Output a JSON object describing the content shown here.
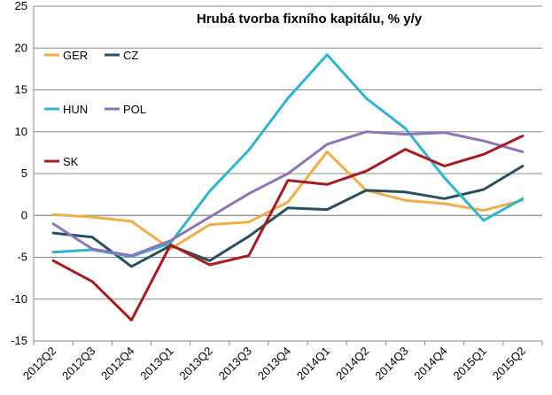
{
  "chart_data": {
    "type": "line",
    "title": "Hrubá tvorba fixního kapitálu, % y/y",
    "xlabel": "",
    "ylabel": "",
    "ylim": [
      -15,
      25
    ],
    "yticks": [
      -15,
      -10,
      -5,
      0,
      5,
      10,
      15,
      20,
      25
    ],
    "grid": true,
    "categories": [
      "2012Q2",
      "2012Q3",
      "2012Q4",
      "2013Q1",
      "2013Q2",
      "2013Q3",
      "2013Q4",
      "2014Q1",
      "2014Q2",
      "2014Q3",
      "2014Q4",
      "2015Q1",
      "2015Q2"
    ],
    "series": [
      {
        "name": "GER",
        "color": "#f0ae49",
        "values": [
          0.1,
          -0.2,
          -0.7,
          -4.0,
          -1.1,
          -0.8,
          1.6,
          7.6,
          3.0,
          1.8,
          1.4,
          0.6,
          1.8
        ]
      },
      {
        "name": "CZ",
        "color": "#2a4f5e",
        "values": [
          -2.1,
          -2.6,
          -6.1,
          -3.6,
          -5.4,
          -2.5,
          0.9,
          0.7,
          3.0,
          2.8,
          2.0,
          3.1,
          5.9
        ]
      },
      {
        "name": "HUN",
        "color": "#2fb4cf",
        "values": [
          -4.4,
          -4.1,
          -4.9,
          -3.3,
          2.9,
          7.8,
          14.0,
          19.2,
          14.0,
          10.4,
          4.5,
          -0.6,
          2.0
        ]
      },
      {
        "name": "POL",
        "color": "#8e76b6",
        "values": [
          -1.0,
          -4.0,
          -4.8,
          -3.0,
          -0.2,
          2.6,
          5.0,
          8.5,
          10.0,
          9.7,
          9.9,
          8.9,
          7.6
        ]
      },
      {
        "name": "SK",
        "color": "#a51c24",
        "values": [
          -5.4,
          -7.9,
          -12.5,
          -3.5,
          -5.9,
          -4.8,
          4.2,
          3.7,
          5.3,
          7.9,
          5.9,
          7.3,
          9.5
        ]
      }
    ],
    "legend": [
      {
        "name": "GER",
        "color": "#f0ae49"
      },
      {
        "name": "CZ",
        "color": "#2a4f5e"
      },
      {
        "name": "HUN",
        "color": "#2fb4cf"
      },
      {
        "name": "POL",
        "color": "#8e76b6"
      },
      {
        "name": "SK",
        "color": "#a51c24"
      }
    ]
  }
}
